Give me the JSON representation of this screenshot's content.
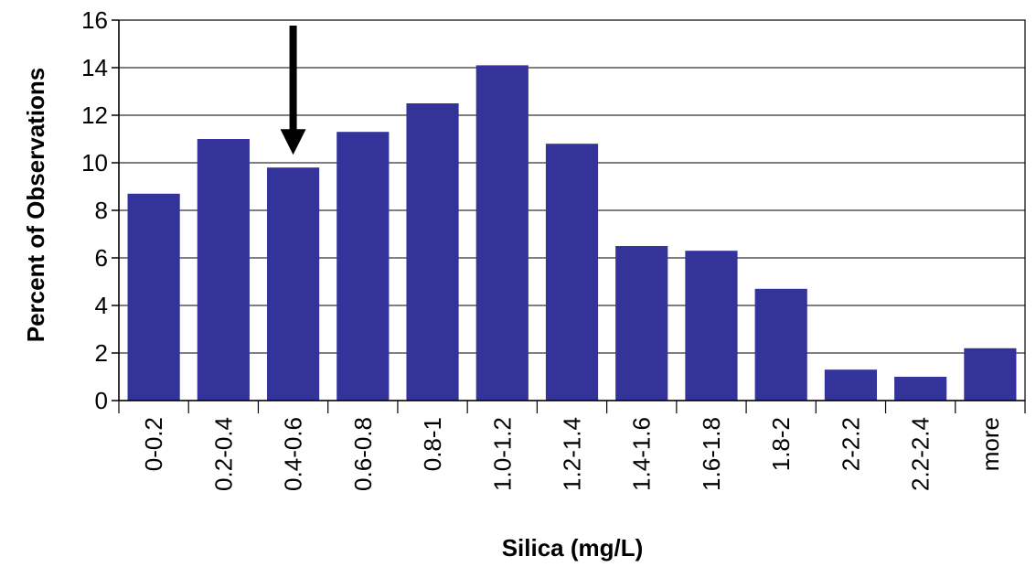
{
  "chart_data": {
    "type": "bar",
    "title": "",
    "xlabel": "Silica (mg/L)",
    "ylabel": "Percent of Observations",
    "categories": [
      "0-0.2",
      "0.2-0.4",
      "0.4-0.6",
      "0.6-0.8",
      "0.8-1",
      "1.0-1.2",
      "1.2-1.4",
      "1.4-1.6",
      "1.6-1.8",
      "1.8-2",
      "2-2.2",
      "2.2-2.4",
      "more"
    ],
    "values": [
      8.7,
      11.0,
      9.8,
      11.3,
      12.5,
      14.1,
      10.8,
      6.5,
      6.3,
      4.7,
      1.3,
      1.0,
      2.2
    ],
    "ylim": [
      0,
      16
    ],
    "yticks": [
      0,
      2,
      4,
      6,
      8,
      10,
      12,
      14,
      16
    ],
    "grid": true,
    "legend": "none",
    "bar_color": "#333399",
    "gridline_color": "#000000",
    "annotation": {
      "type": "arrow",
      "category": "0.4-0.6",
      "color": "#000000"
    }
  }
}
